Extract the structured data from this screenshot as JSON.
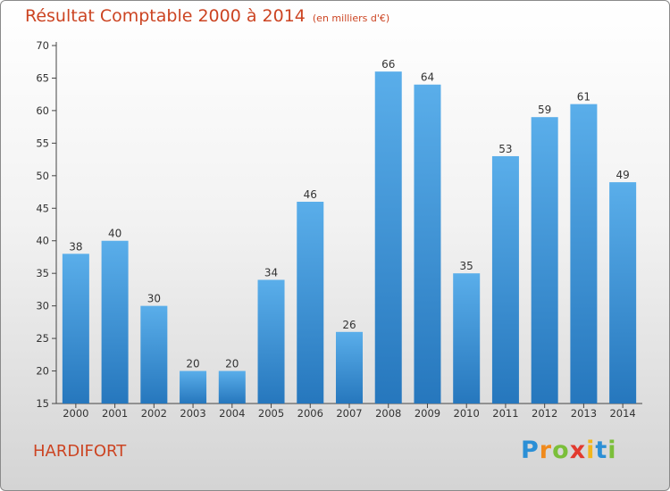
{
  "chart_data": {
    "type": "bar",
    "title": "Résultat Comptable 2000 à 2014",
    "subtitle": "(en milliers d'€)",
    "categories": [
      "2000",
      "2001",
      "2002",
      "2003",
      "2004",
      "2005",
      "2006",
      "2007",
      "2008",
      "2009",
      "2010",
      "2011",
      "2012",
      "2013",
      "2014"
    ],
    "values": [
      38,
      40,
      30,
      20,
      20,
      34,
      46,
      26,
      66,
      64,
      35,
      53,
      59,
      61,
      49
    ],
    "ylim": [
      15,
      70
    ],
    "yticks": [
      15,
      20,
      25,
      30,
      35,
      40,
      45,
      50,
      55,
      60,
      65,
      70
    ],
    "xlabel": "",
    "ylabel": "",
    "grid": false,
    "bar_color": "#3a8fd4"
  },
  "footer": {
    "town": "HARDIFORT",
    "logo_letters": [
      "P",
      "r",
      "o",
      "x",
      "i",
      "t",
      "i"
    ]
  }
}
